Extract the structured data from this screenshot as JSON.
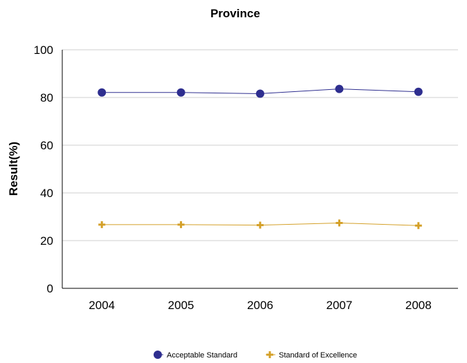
{
  "chart_data": {
    "type": "line",
    "title": "Province",
    "xlabel": "",
    "ylabel": "Result(%)",
    "categories": [
      "2004",
      "2005",
      "2006",
      "2007",
      "2008"
    ],
    "ylim": [
      0,
      100
    ],
    "yticks": [
      0,
      20,
      40,
      60,
      80,
      100
    ],
    "grid": "horizontal",
    "legend_position": "bottom",
    "series": [
      {
        "name": "Acceptable Standard",
        "values": [
          82.1,
          82.1,
          81.6,
          83.6,
          82.4
        ],
        "color": "#2e2e8f",
        "marker": "circle"
      },
      {
        "name": "Standard of Excellence",
        "values": [
          26.7,
          26.7,
          26.5,
          27.4,
          26.3
        ],
        "color": "#d4a028",
        "marker": "plus"
      }
    ]
  }
}
